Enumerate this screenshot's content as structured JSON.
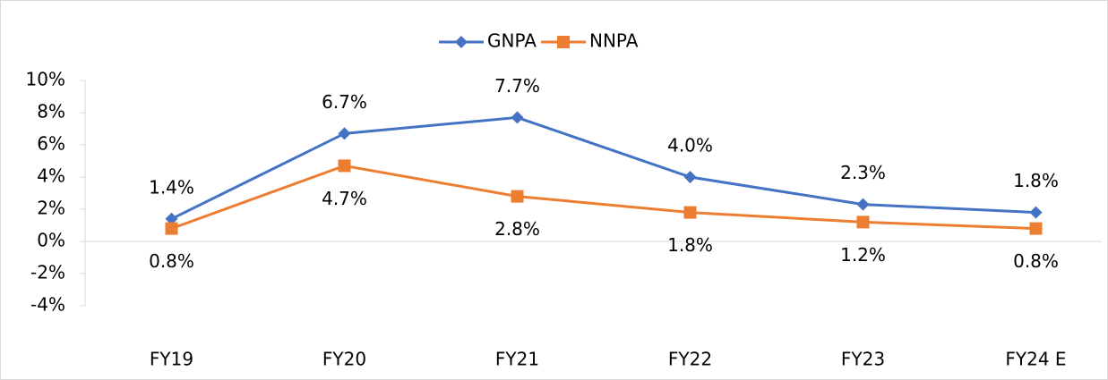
{
  "chart_data": {
    "type": "line",
    "categories": [
      "FY19",
      "FY20",
      "FY21",
      "FY22",
      "FY23",
      "FY24 E"
    ],
    "series": [
      {
        "name": "GNPA",
        "color": "#4472c4",
        "values": [
          1.4,
          6.7,
          7.7,
          4.0,
          2.3,
          1.8
        ],
        "value_labels": [
          "1.4%",
          "6.7%",
          "7.7%",
          "4.0%",
          "2.3%",
          "1.8%"
        ]
      },
      {
        "name": "NNPA",
        "color": "#ed7d31",
        "values": [
          0.8,
          4.7,
          2.8,
          1.8,
          1.2,
          0.8
        ],
        "value_labels": [
          "0.8%",
          "4.7%",
          "2.8%",
          "1.8%",
          "1.2%",
          "0.8%"
        ]
      }
    ],
    "ylim": [
      -4,
      10
    ],
    "yticks": [
      {
        "value": -4,
        "label": "-4%"
      },
      {
        "value": -2,
        "label": "-2%"
      },
      {
        "value": 0,
        "label": "0%"
      },
      {
        "value": 2,
        "label": "2%"
      },
      {
        "value": 4,
        "label": "4%"
      },
      {
        "value": 6,
        "label": "6%"
      },
      {
        "value": 8,
        "label": "8%"
      },
      {
        "value": 10,
        "label": "10%"
      }
    ],
    "legend": "top",
    "grid": false
  }
}
